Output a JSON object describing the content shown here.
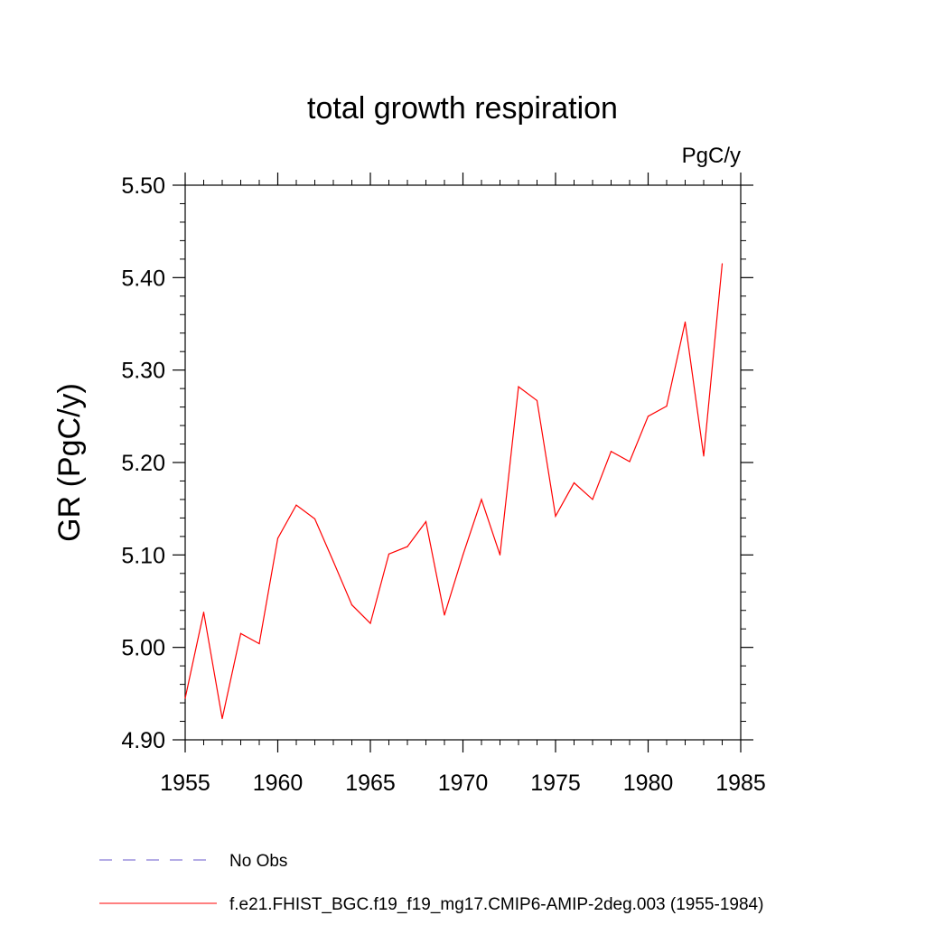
{
  "chart_data": {
    "type": "line",
    "title": "total growth respiration",
    "units_label": "PgC/y",
    "ylabel": "GR  (PgC/y)",
    "xlabel": "",
    "xlim": [
      1955,
      1985
    ],
    "ylim": [
      4.9,
      5.5
    ],
    "x_ticks": [
      1955,
      1960,
      1965,
      1970,
      1975,
      1980,
      1985
    ],
    "y_ticks": [
      "4.90",
      "5.00",
      "5.10",
      "5.20",
      "5.30",
      "5.40",
      "5.50"
    ],
    "series": [
      {
        "name": "f.e21.FHIST_BGC.f19_f19_mg17.CMIP6-AMIP-2deg.003 (1955-1984)",
        "color": "#ff0000",
        "style": "solid",
        "x": [
          1955,
          1956,
          1957,
          1958,
          1959,
          1960,
          1961,
          1962,
          1963,
          1964,
          1965,
          1966,
          1967,
          1968,
          1969,
          1970,
          1971,
          1972,
          1973,
          1974,
          1975,
          1976,
          1977,
          1978,
          1979,
          1980,
          1981,
          1982,
          1983,
          1984
        ],
        "values": [
          4.945,
          5.038,
          4.923,
          5.015,
          5.004,
          5.118,
          5.154,
          5.139,
          5.093,
          5.046,
          5.026,
          5.101,
          5.109,
          5.136,
          5.035,
          5.1,
          5.16,
          5.1,
          5.282,
          5.267,
          5.142,
          5.178,
          5.16,
          5.212,
          5.201,
          5.25,
          5.261,
          5.352,
          5.207,
          5.415
        ]
      }
    ],
    "legend": [
      {
        "label": "No Obs",
        "color": "#6a5acd",
        "style": "dashed"
      },
      {
        "label": "f.e21.FHIST_BGC.f19_f19_mg17.CMIP6-AMIP-2deg.003 (1955-1984)",
        "color": "#ff0000",
        "style": "solid"
      }
    ]
  }
}
